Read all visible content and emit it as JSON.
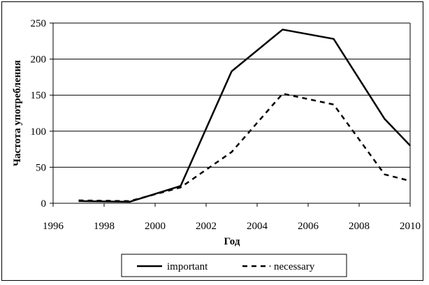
{
  "chart_data": {
    "type": "line",
    "title": "",
    "xlabel": "Год",
    "ylabel": "Частота употребления",
    "xlim": [
      1996,
      2010
    ],
    "ylim": [
      0,
      250
    ],
    "xticks": [
      1996,
      1998,
      2000,
      2002,
      2004,
      2006,
      2008,
      2010
    ],
    "yticks": [
      0,
      50,
      100,
      150,
      200,
      250
    ],
    "grid": "horizontal",
    "legend_position": "bottom",
    "series": [
      {
        "name": "important",
        "style": "solid",
        "color": "#000000",
        "x": [
          1997,
          1999,
          2001,
          2003,
          2005,
          2007,
          2009,
          2010
        ],
        "y": [
          3,
          2,
          24,
          183,
          241,
          228,
          117,
          80
        ]
      },
      {
        "name": "necessary",
        "style": "dashed",
        "color": "#000000",
        "x": [
          1997,
          1999,
          2001,
          2003,
          2005,
          2007,
          2009,
          2010
        ],
        "y": [
          4,
          3,
          22,
          71,
          152,
          137,
          40,
          31
        ]
      }
    ]
  }
}
